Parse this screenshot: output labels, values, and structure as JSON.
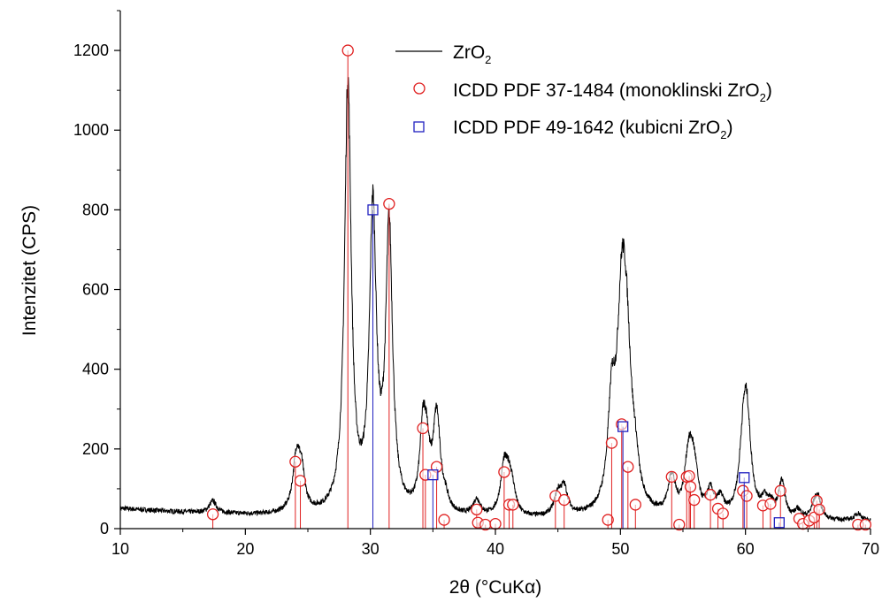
{
  "chart_data": {
    "type": "line",
    "title": "",
    "xlabel": "2θ (°CuKα)",
    "ylabel": "Intenzitet (CPS)",
    "xlim": [
      10,
      70
    ],
    "ylim": [
      0,
      1300
    ],
    "x_ticks": [
      10,
      20,
      30,
      40,
      50,
      60,
      70
    ],
    "y_ticks": [
      0,
      200,
      400,
      600,
      800,
      1000,
      1200
    ],
    "x_tick_labels": [
      "10",
      "20",
      "30",
      "40",
      "50",
      "60",
      "70"
    ],
    "y_tick_labels": [
      "0",
      "200",
      "400",
      "600",
      "800",
      "1000",
      "1200"
    ],
    "grid": false,
    "legend_position": "top-right",
    "legend": {
      "zro2": {
        "base": "ZrO",
        "sub": "2"
      },
      "mono": {
        "base": "ICDD PDF 37-1484 (monoklinski ZrO",
        "sub": "2",
        "tail": ")"
      },
      "cubic": {
        "base": "ICDD PDF 49-1642 (kubicni ZrO",
        "sub": "2",
        "tail": ")"
      }
    },
    "colors": {
      "pattern": "#000000",
      "mono": "#e02020",
      "cubic": "#2020c0"
    },
    "series": [
      {
        "name": "ZrO2",
        "style": "line",
        "peaks": [
          {
            "x": 17.4,
            "h": 30,
            "w": 0.35
          },
          {
            "x": 24.1,
            "h": 140,
            "w": 0.35
          },
          {
            "x": 24.5,
            "h": 80,
            "w": 0.3
          },
          {
            "x": 28.2,
            "h": 1080,
            "w": 0.32
          },
          {
            "x": 30.2,
            "h": 745,
            "w": 0.33
          },
          {
            "x": 31.5,
            "h": 705,
            "w": 0.33
          },
          {
            "x": 34.2,
            "h": 180,
            "w": 0.3
          },
          {
            "x": 34.5,
            "h": 120,
            "w": 0.3
          },
          {
            "x": 35.3,
            "h": 240,
            "w": 0.35
          },
          {
            "x": 36.0,
            "h": 25,
            "w": 0.3
          },
          {
            "x": 38.5,
            "h": 40,
            "w": 0.35
          },
          {
            "x": 40.7,
            "h": 120,
            "w": 0.35
          },
          {
            "x": 41.1,
            "h": 70,
            "w": 0.3
          },
          {
            "x": 41.4,
            "h": 40,
            "w": 0.3
          },
          {
            "x": 45.0,
            "h": 50,
            "w": 0.35
          },
          {
            "x": 45.5,
            "h": 65,
            "w": 0.35
          },
          {
            "x": 49.3,
            "h": 230,
            "w": 0.35
          },
          {
            "x": 50.1,
            "h": 430,
            "w": 0.45
          },
          {
            "x": 50.5,
            "h": 330,
            "w": 0.5
          },
          {
            "x": 51.2,
            "h": 60,
            "w": 0.3
          },
          {
            "x": 54.1,
            "h": 95,
            "w": 0.35
          },
          {
            "x": 55.4,
            "h": 110,
            "w": 0.35
          },
          {
            "x": 55.7,
            "h": 100,
            "w": 0.35
          },
          {
            "x": 56.0,
            "h": 60,
            "w": 0.3
          },
          {
            "x": 57.2,
            "h": 60,
            "w": 0.35
          },
          {
            "x": 58.0,
            "h": 40,
            "w": 0.3
          },
          {
            "x": 59.8,
            "h": 120,
            "w": 0.35
          },
          {
            "x": 60.1,
            "h": 250,
            "w": 0.4
          },
          {
            "x": 61.5,
            "h": 35,
            "w": 0.3
          },
          {
            "x": 62.0,
            "h": 30,
            "w": 0.3
          },
          {
            "x": 62.9,
            "h": 90,
            "w": 0.3
          },
          {
            "x": 64.2,
            "h": 20,
            "w": 0.3
          },
          {
            "x": 65.5,
            "h": 25,
            "w": 0.3
          },
          {
            "x": 65.8,
            "h": 50,
            "w": 0.3
          },
          {
            "x": 69.0,
            "h": 18,
            "w": 0.3
          }
        ]
      },
      {
        "name": "ICDD PDF 37-1484 (monoklinski ZrO2)",
        "style": "stick-circle",
        "points": [
          [
            17.4,
            36
          ],
          [
            24.0,
            168
          ],
          [
            24.4,
            120
          ],
          [
            28.2,
            1200
          ],
          [
            31.5,
            815
          ],
          [
            34.2,
            252
          ],
          [
            34.4,
            135
          ],
          [
            35.3,
            155
          ],
          [
            35.9,
            22
          ],
          [
            38.5,
            48
          ],
          [
            38.6,
            15
          ],
          [
            39.2,
            10
          ],
          [
            40.0,
            12
          ],
          [
            40.7,
            142
          ],
          [
            41.1,
            60
          ],
          [
            41.4,
            60
          ],
          [
            44.8,
            82
          ],
          [
            45.5,
            72
          ],
          [
            49.0,
            22
          ],
          [
            49.3,
            215
          ],
          [
            50.1,
            262
          ],
          [
            50.6,
            155
          ],
          [
            51.2,
            60
          ],
          [
            54.1,
            130
          ],
          [
            54.7,
            10
          ],
          [
            55.3,
            130
          ],
          [
            55.5,
            132
          ],
          [
            55.6,
            105
          ],
          [
            55.9,
            72
          ],
          [
            57.2,
            85
          ],
          [
            57.8,
            50
          ],
          [
            58.2,
            38
          ],
          [
            59.8,
            95
          ],
          [
            60.1,
            82
          ],
          [
            61.4,
            58
          ],
          [
            62.0,
            62
          ],
          [
            62.8,
            95
          ],
          [
            64.3,
            25
          ],
          [
            64.6,
            12
          ],
          [
            65.1,
            20
          ],
          [
            65.5,
            28
          ],
          [
            65.7,
            70
          ],
          [
            65.9,
            48
          ],
          [
            69.0,
            10
          ],
          [
            69.6,
            10
          ]
        ]
      },
      {
        "name": "ICDD PDF 49-1642 (kubicni ZrO2)",
        "style": "stick-square",
        "points": [
          [
            30.2,
            800
          ],
          [
            35.0,
            135
          ],
          [
            50.2,
            256
          ],
          [
            59.9,
            128
          ],
          [
            62.7,
            15
          ]
        ]
      }
    ]
  }
}
